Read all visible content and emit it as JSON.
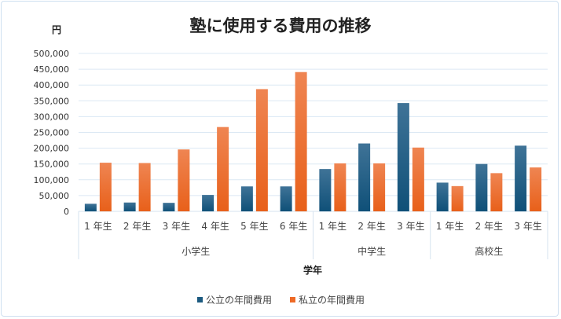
{
  "chart_data": {
    "type": "bar",
    "title": "塾に使用する費用の推移",
    "ylabel": "円",
    "xlabel": "学年",
    "ylim": [
      0,
      500000
    ],
    "ytick_step": 50000,
    "yticks": [
      "0",
      "50,000",
      "100,000",
      "150,000",
      "200,000",
      "250,000",
      "300,000",
      "350,000",
      "400,000",
      "450,000",
      "500,000"
    ],
    "grid": true,
    "legend_position": "bottom",
    "groups": [
      {
        "label": "小学生",
        "categories": [
          "1 年生",
          "2 年生",
          "3 年生",
          "4 年生",
          "5 年生",
          "6 年生"
        ]
      },
      {
        "label": "中学生",
        "categories": [
          "1 年生",
          "2 年生",
          "3 年生"
        ]
      },
      {
        "label": "高校生",
        "categories": [
          "1 年生",
          "2 年生",
          "3 年生"
        ]
      }
    ],
    "series": [
      {
        "name": "公立の年間費用",
        "color": "#1c5a80",
        "values": [
          24000,
          28000,
          27000,
          52000,
          79000,
          79000,
          134000,
          215000,
          343000,
          91000,
          150000,
          208000
        ]
      },
      {
        "name": "私立の年間費用",
        "color": "#ee6a26",
        "values": [
          154000,
          153000,
          196000,
          267000,
          387000,
          441000,
          152000,
          152000,
          202000,
          80000,
          121000,
          139000
        ]
      }
    ]
  }
}
